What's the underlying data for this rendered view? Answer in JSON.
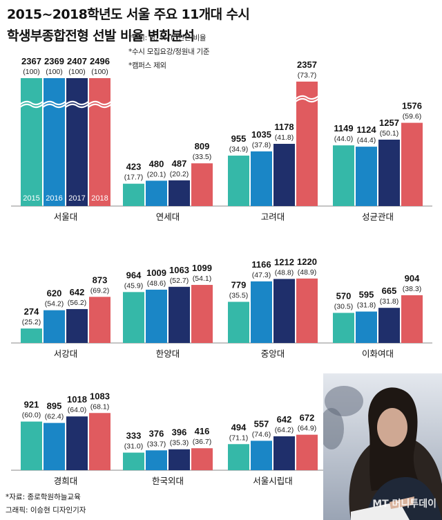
{
  "title": "2015~2018학년도 서울 주요 11개대 수시 학생부종합전형 선발 비율 변화분석",
  "notes": [
    "*단위: 명, %, ( )안은 비율",
    "*수시 모집요강/정원내 기준",
    "*캠퍼스 제외"
  ],
  "colors": {
    "2015": "#35b8a8",
    "2016": "#1a86c6",
    "2017": "#1f2f6b",
    "2018": "#e05b5f"
  },
  "chart_data": {
    "type": "bar",
    "title": "2015~2018학년도 서울 주요 11개대 수시 학생부종합전형 선발 비율 변화분석",
    "units": "명, %, ( )안은 비율",
    "series_years": [
      "2015",
      "2016",
      "2017",
      "2018"
    ],
    "groups": [
      {
        "name": "서울대",
        "values": [
          2367,
          2369,
          2407,
          2496
        ],
        "ratios": [
          "(100)",
          "(100)",
          "(100)",
          "(100)"
        ],
        "axis_break": true
      },
      {
        "name": "연세대",
        "values": [
          423,
          480,
          487,
          809
        ],
        "ratios": [
          "(17.7)",
          "(20.1)",
          "(20.2)",
          "(33.5)"
        ]
      },
      {
        "name": "고려대",
        "values": [
          955,
          1035,
          1178,
          2357
        ],
        "ratios": [
          "(34.9)",
          "(37.8)",
          "(41.8)",
          "(73.7)"
        ],
        "axis_break_last": true
      },
      {
        "name": "성균관대",
        "values": [
          1149,
          1124,
          1257,
          1576
        ],
        "ratios": [
          "(44.0)",
          "(44.4)",
          "(50.1)",
          "(59.6)"
        ]
      },
      {
        "name": "서강대",
        "values": [
          274,
          620,
          642,
          873
        ],
        "ratios": [
          "(25.2)",
          "(54.2)",
          "(56.2)",
          "(69.2)"
        ]
      },
      {
        "name": "한양대",
        "values": [
          964,
          1009,
          1063,
          1099
        ],
        "ratios": [
          "(45.9)",
          "(48.6)",
          "(52.7)",
          "(54.1)"
        ]
      },
      {
        "name": "중앙대",
        "values": [
          779,
          1166,
          1212,
          1220
        ],
        "ratios": [
          "(35.5)",
          "(47.3)",
          "(48.8)",
          "(48.9)"
        ]
      },
      {
        "name": "이화여대",
        "values": [
          570,
          595,
          665,
          904
        ],
        "ratios": [
          "(30.5)",
          "(31.8)",
          "(31.8)",
          "(38.3)"
        ]
      },
      {
        "name": "경희대",
        "values": [
          921,
          895,
          1018,
          1083
        ],
        "ratios": [
          "(60.0)",
          "(62.4)",
          "(64.0)",
          "(68.1)"
        ]
      },
      {
        "name": "한국외대",
        "values": [
          333,
          376,
          396,
          416
        ],
        "ratios": [
          "(31.0)",
          "(33.7)",
          "(35.3)",
          "(36.7)"
        ]
      },
      {
        "name": "서울시립대",
        "values": [
          494,
          557,
          642,
          672
        ],
        "ratios": [
          "(71.1)",
          "(74.6)",
          "(64.2)",
          "(64.9)"
        ]
      }
    ]
  },
  "credits": [
    "*자료: 종로학원하늘교육",
    "그래픽: 이승현 디자인기자"
  ],
  "watermark": "MT 머니투데이",
  "photo_icon": "student-studying-photo"
}
